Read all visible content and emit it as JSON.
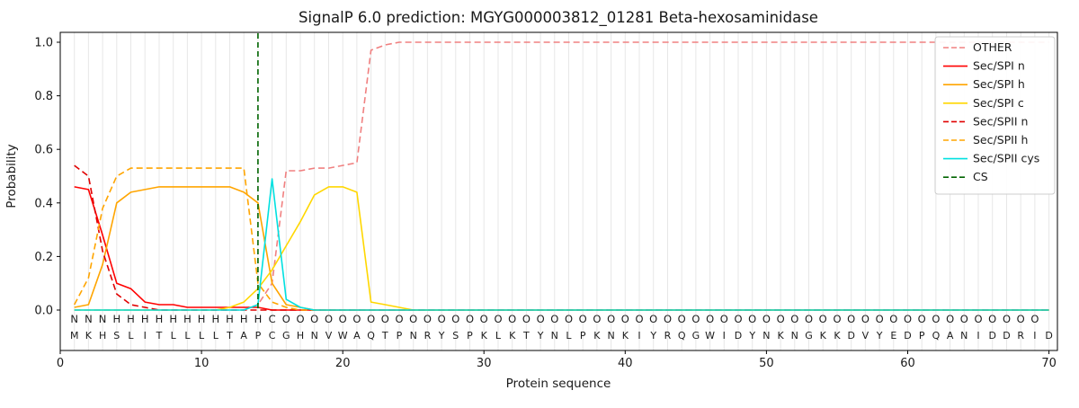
{
  "title": "SignalP 6.0 prediction: MGYG000003812_01281 Beta-hexosaminidase",
  "chart_data": {
    "type": "line",
    "xlabel": "Protein sequence",
    "ylabel": "Probability",
    "xlim": [
      0,
      70.6
    ],
    "ylim": [
      0,
      1.05
    ],
    "grid": "vertical-per-residue",
    "legend_position": "upper-right",
    "xticks": [
      0,
      10,
      20,
      30,
      40,
      50,
      60,
      70
    ],
    "yticks": [
      0.0,
      0.2,
      0.4,
      0.6,
      0.8,
      1.0
    ],
    "sequence": "MKHSLITLLLLTAPCGHNVWAQTPNRYSPKLKTYNLPKNKIYRQGWIDYNKNGKKDVYEDPQANIDDRID",
    "region_labels": "NNNHHHHHHHHHHHCOOOOOOOOOOOOOOOOOOOOOOOOOOOOOOOOOOOOOOOOOOOOOOOOOOOOOO",
    "region_colors": {
      "N": "#ff0000",
      "H": "#ffa500",
      "C": "#00d5d5",
      "O": "#7f7f7f"
    },
    "cs_position": 14,
    "series": [
      {
        "name": "OTHER",
        "color": "#f08080",
        "dash": true,
        "values": [
          0,
          0,
          0,
          0,
          0,
          0,
          0,
          0,
          0,
          0,
          0,
          0,
          0,
          0.02,
          0.1,
          0.52,
          0.52,
          0.53,
          0.53,
          0.54,
          0.55,
          0.97,
          0.99,
          1,
          1,
          1,
          1,
          1,
          1,
          1,
          1,
          1,
          1,
          1,
          1,
          1,
          1,
          1,
          1,
          1,
          1,
          1,
          1,
          1,
          1,
          1,
          1,
          1,
          1,
          1,
          1,
          1,
          1,
          1,
          1,
          1,
          1,
          1,
          1,
          1,
          1,
          1,
          1,
          1,
          1,
          1,
          1,
          1,
          1,
          1
        ]
      },
      {
        "name": "Sec/SPI n",
        "color": "#ff0000",
        "dash": false,
        "values": [
          0.46,
          0.45,
          0.28,
          0.1,
          0.08,
          0.03,
          0.02,
          0.02,
          0.01,
          0.01,
          0.01,
          0.01,
          0.01,
          0.01,
          0,
          0,
          0,
          0,
          0,
          0,
          0,
          0,
          0,
          0,
          0,
          0,
          0,
          0,
          0,
          0,
          0,
          0,
          0,
          0,
          0,
          0,
          0,
          0,
          0,
          0,
          0,
          0,
          0,
          0,
          0,
          0,
          0,
          0,
          0,
          0,
          0,
          0,
          0,
          0,
          0,
          0,
          0,
          0,
          0,
          0,
          0,
          0,
          0,
          0,
          0,
          0,
          0,
          0,
          0,
          0
        ]
      },
      {
        "name": "Sec/SPI h",
        "color": "#ffa500",
        "dash": false,
        "values": [
          0.01,
          0.02,
          0.17,
          0.4,
          0.44,
          0.45,
          0.46,
          0.46,
          0.46,
          0.46,
          0.46,
          0.46,
          0.44,
          0.4,
          0.1,
          0.02,
          0.01,
          0,
          0,
          0,
          0,
          0,
          0,
          0,
          0,
          0,
          0,
          0,
          0,
          0,
          0,
          0,
          0,
          0,
          0,
          0,
          0,
          0,
          0,
          0,
          0,
          0,
          0,
          0,
          0,
          0,
          0,
          0,
          0,
          0,
          0,
          0,
          0,
          0,
          0,
          0,
          0,
          0,
          0,
          0,
          0,
          0,
          0,
          0,
          0,
          0,
          0,
          0,
          0,
          0
        ]
      },
      {
        "name": "Sec/SPI c",
        "color": "#ffd700",
        "dash": false,
        "values": [
          0,
          0,
          0,
          0,
          0,
          0,
          0,
          0,
          0,
          0,
          0,
          0.01,
          0.03,
          0.08,
          0.15,
          0.24,
          0.33,
          0.43,
          0.46,
          0.46,
          0.44,
          0.03,
          0.02,
          0.01,
          0,
          0,
          0,
          0,
          0,
          0,
          0,
          0,
          0,
          0,
          0,
          0,
          0,
          0,
          0,
          0,
          0,
          0,
          0,
          0,
          0,
          0,
          0,
          0,
          0,
          0,
          0,
          0,
          0,
          0,
          0,
          0,
          0,
          0,
          0,
          0,
          0,
          0,
          0,
          0,
          0,
          0,
          0,
          0,
          0,
          0
        ]
      },
      {
        "name": "Sec/SPII n",
        "color": "#e00000",
        "dash": true,
        "values": [
          0.54,
          0.5,
          0.22,
          0.06,
          0.02,
          0.01,
          0,
          0,
          0,
          0,
          0,
          0,
          0,
          0,
          0,
          0,
          0,
          0,
          0,
          0,
          0,
          0,
          0,
          0,
          0,
          0,
          0,
          0,
          0,
          0,
          0,
          0,
          0,
          0,
          0,
          0,
          0,
          0,
          0,
          0,
          0,
          0,
          0,
          0,
          0,
          0,
          0,
          0,
          0,
          0,
          0,
          0,
          0,
          0,
          0,
          0,
          0,
          0,
          0,
          0,
          0,
          0,
          0,
          0,
          0,
          0,
          0,
          0,
          0,
          0
        ]
      },
      {
        "name": "Sec/SPII h",
        "color": "#ffa500",
        "dash": true,
        "values": [
          0.02,
          0.12,
          0.38,
          0.5,
          0.53,
          0.53,
          0.53,
          0.53,
          0.53,
          0.53,
          0.53,
          0.53,
          0.53,
          0.1,
          0.03,
          0.01,
          0,
          0,
          0,
          0,
          0,
          0,
          0,
          0,
          0,
          0,
          0,
          0,
          0,
          0,
          0,
          0,
          0,
          0,
          0,
          0,
          0,
          0,
          0,
          0,
          0,
          0,
          0,
          0,
          0,
          0,
          0,
          0,
          0,
          0,
          0,
          0,
          0,
          0,
          0,
          0,
          0,
          0,
          0,
          0,
          0,
          0,
          0,
          0,
          0,
          0,
          0,
          0,
          0,
          0
        ]
      },
      {
        "name": "Sec/SPII cys",
        "color": "#00e0e0",
        "dash": false,
        "values": [
          0,
          0,
          0,
          0,
          0,
          0,
          0,
          0,
          0,
          0,
          0,
          0,
          0,
          0.02,
          0.49,
          0.04,
          0.01,
          0,
          0,
          0,
          0,
          0,
          0,
          0,
          0,
          0,
          0,
          0,
          0,
          0,
          0,
          0,
          0,
          0,
          0,
          0,
          0,
          0,
          0,
          0,
          0,
          0,
          0,
          0,
          0,
          0,
          0,
          0,
          0,
          0,
          0,
          0,
          0,
          0,
          0,
          0,
          0,
          0,
          0,
          0,
          0,
          0,
          0,
          0,
          0,
          0,
          0,
          0,
          0,
          0
        ]
      },
      {
        "name": "CS",
        "color": "#006400",
        "dash": true,
        "vline": 14
      }
    ]
  }
}
